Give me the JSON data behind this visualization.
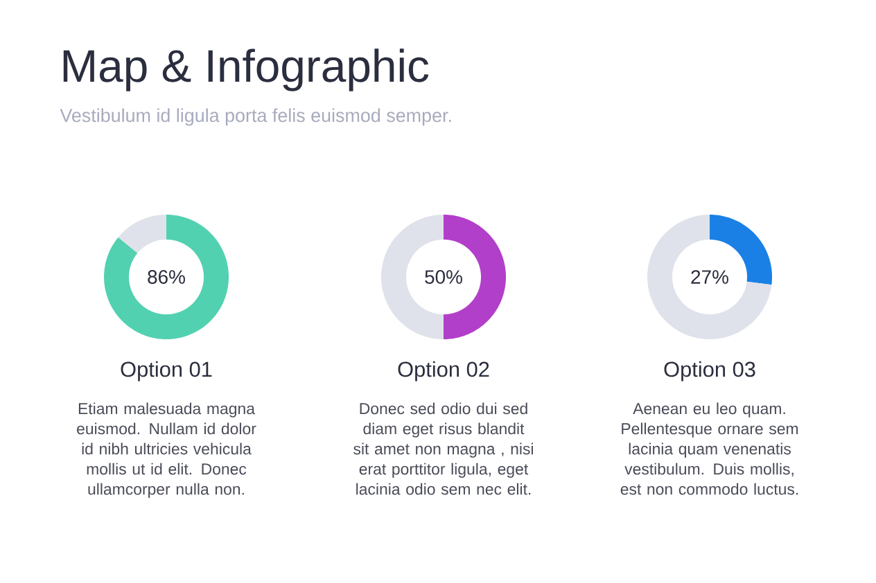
{
  "chart_data": [
    {
      "type": "other",
      "title": "Map & Infographic",
      "subtitle": "Vestibulum id ligula porta felis euismod semper."
    },
    {
      "type": "donut",
      "title": "Option 01",
      "categories": [
        null,
        null
      ],
      "values": [
        86,
        14
      ],
      "colors": [
        "#52d1b0",
        "#dfe2ea"
      ],
      "value_labels": [
        "86%",
        null
      ],
      "annotations": [
        "Etiam malesuada magna euismod. Nullam id dolor id nibh ultricies vehicula mollis ut id elit. Donec ullamcorper nulla non."
      ]
    },
    {
      "type": "donut",
      "title": "Option 02",
      "categories": [
        null,
        null
      ],
      "values": [
        50,
        50
      ],
      "colors": [
        "#b23fc9",
        "#dfe2ea"
      ],
      "value_labels": [
        "50%",
        null
      ],
      "annotations": [
        "Donec sed odio dui sed diam eget risus blandit sit amet non magna , nisi erat porttitor ligula, eget lacinia odio sem nec elit."
      ]
    },
    {
      "type": "donut",
      "title": "Option 03",
      "categories": [
        null,
        null
      ],
      "values": [
        27,
        73
      ],
      "colors": [
        "#1a80e6",
        "#dfe2ea"
      ],
      "value_labels": [
        "27%",
        null
      ],
      "annotations": [
        "Aenean eu leo quam. Pellentesque ornare sem lacinia quam venenatis vestibulum. Duis mollis, est non commodo luctus."
      ]
    }
  ]
}
